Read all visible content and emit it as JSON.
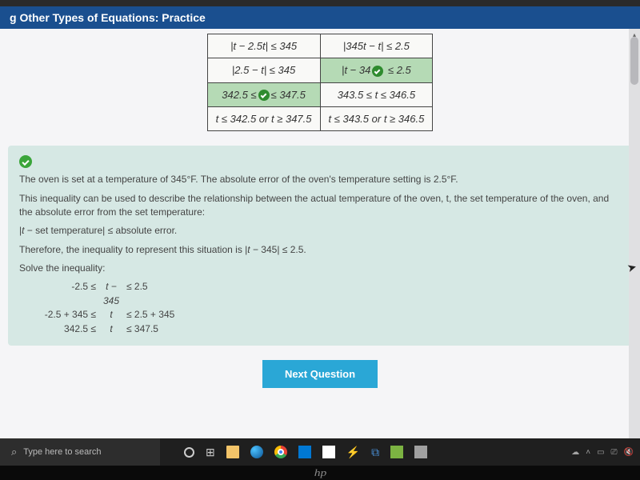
{
  "browser": {
    "url_hint": "…edmentum.com"
  },
  "header": {
    "title": "g Other Types of Equations: Practice"
  },
  "options": {
    "rows": [
      [
        {
          "html": "|<i>t</i> − 2.5<i>t</i>| ≤ 345",
          "selected": false
        },
        {
          "html": "|345<i>t</i> − <i>t</i>| ≤ 2.5",
          "selected": false
        }
      ],
      [
        {
          "html": "|2.5 − <i>t</i>| ≤ 345",
          "selected": false
        },
        {
          "html": "|<i>t</i> − 34<span class='check-badge'></span> ≤ 2.5",
          "selected": true
        }
      ],
      [
        {
          "html": "342.5 ≤<span class='check-badge'></span>≤ 347.5",
          "selected": true
        },
        {
          "html": "343.5 ≤ <i>t</i> ≤ 346.5",
          "selected": false
        }
      ],
      [
        {
          "html": "<i>t</i> ≤ 342.5 or <i>t</i> ≥ 347.5",
          "selected": false
        },
        {
          "html": "<i>t</i> ≤ 343.5 or <i>t</i> ≥ 346.5",
          "selected": false
        }
      ]
    ],
    "border_color": "#444444",
    "selected_bg": "#b5dab5"
  },
  "feedback": {
    "p1": "The oven is set at a temperature of 345°F. The absolute error of the oven's temperature setting is 2.5°F.",
    "p2": "This inequality can be used to describe the relationship between the actual temperature of the oven, t, the set temperature of the oven, and the absolute error from the set temperature:",
    "p3": "|t − set temperature| ≤ absolute error.",
    "p4": "Therefore, the inequality to represent this situation is |t − 345| ≤ 2.5.",
    "p5": "Solve the inequality:",
    "steps": [
      {
        "left": "-2.5 ≤",
        "mid": "t − 345",
        "right": "≤ 2.5"
      },
      {
        "left": "-2.5 + 345 ≤",
        "mid": "t",
        "right": "≤ 2.5 + 345"
      },
      {
        "left": "342.5 ≤",
        "mid": "t",
        "right": "≤ 347.5"
      }
    ],
    "bg_color": "#d6e8e4"
  },
  "buttons": {
    "next": "Next Question"
  },
  "taskbar": {
    "search_placeholder": "Type here to search",
    "tray_icons": [
      "▲",
      "🔋",
      "📶",
      "🔊"
    ]
  },
  "colors": {
    "header_bg": "#1a4f8f",
    "next_btn": "#2aa7d6",
    "page_bg": "#f5f5f7"
  },
  "laptop_brand": "hp"
}
